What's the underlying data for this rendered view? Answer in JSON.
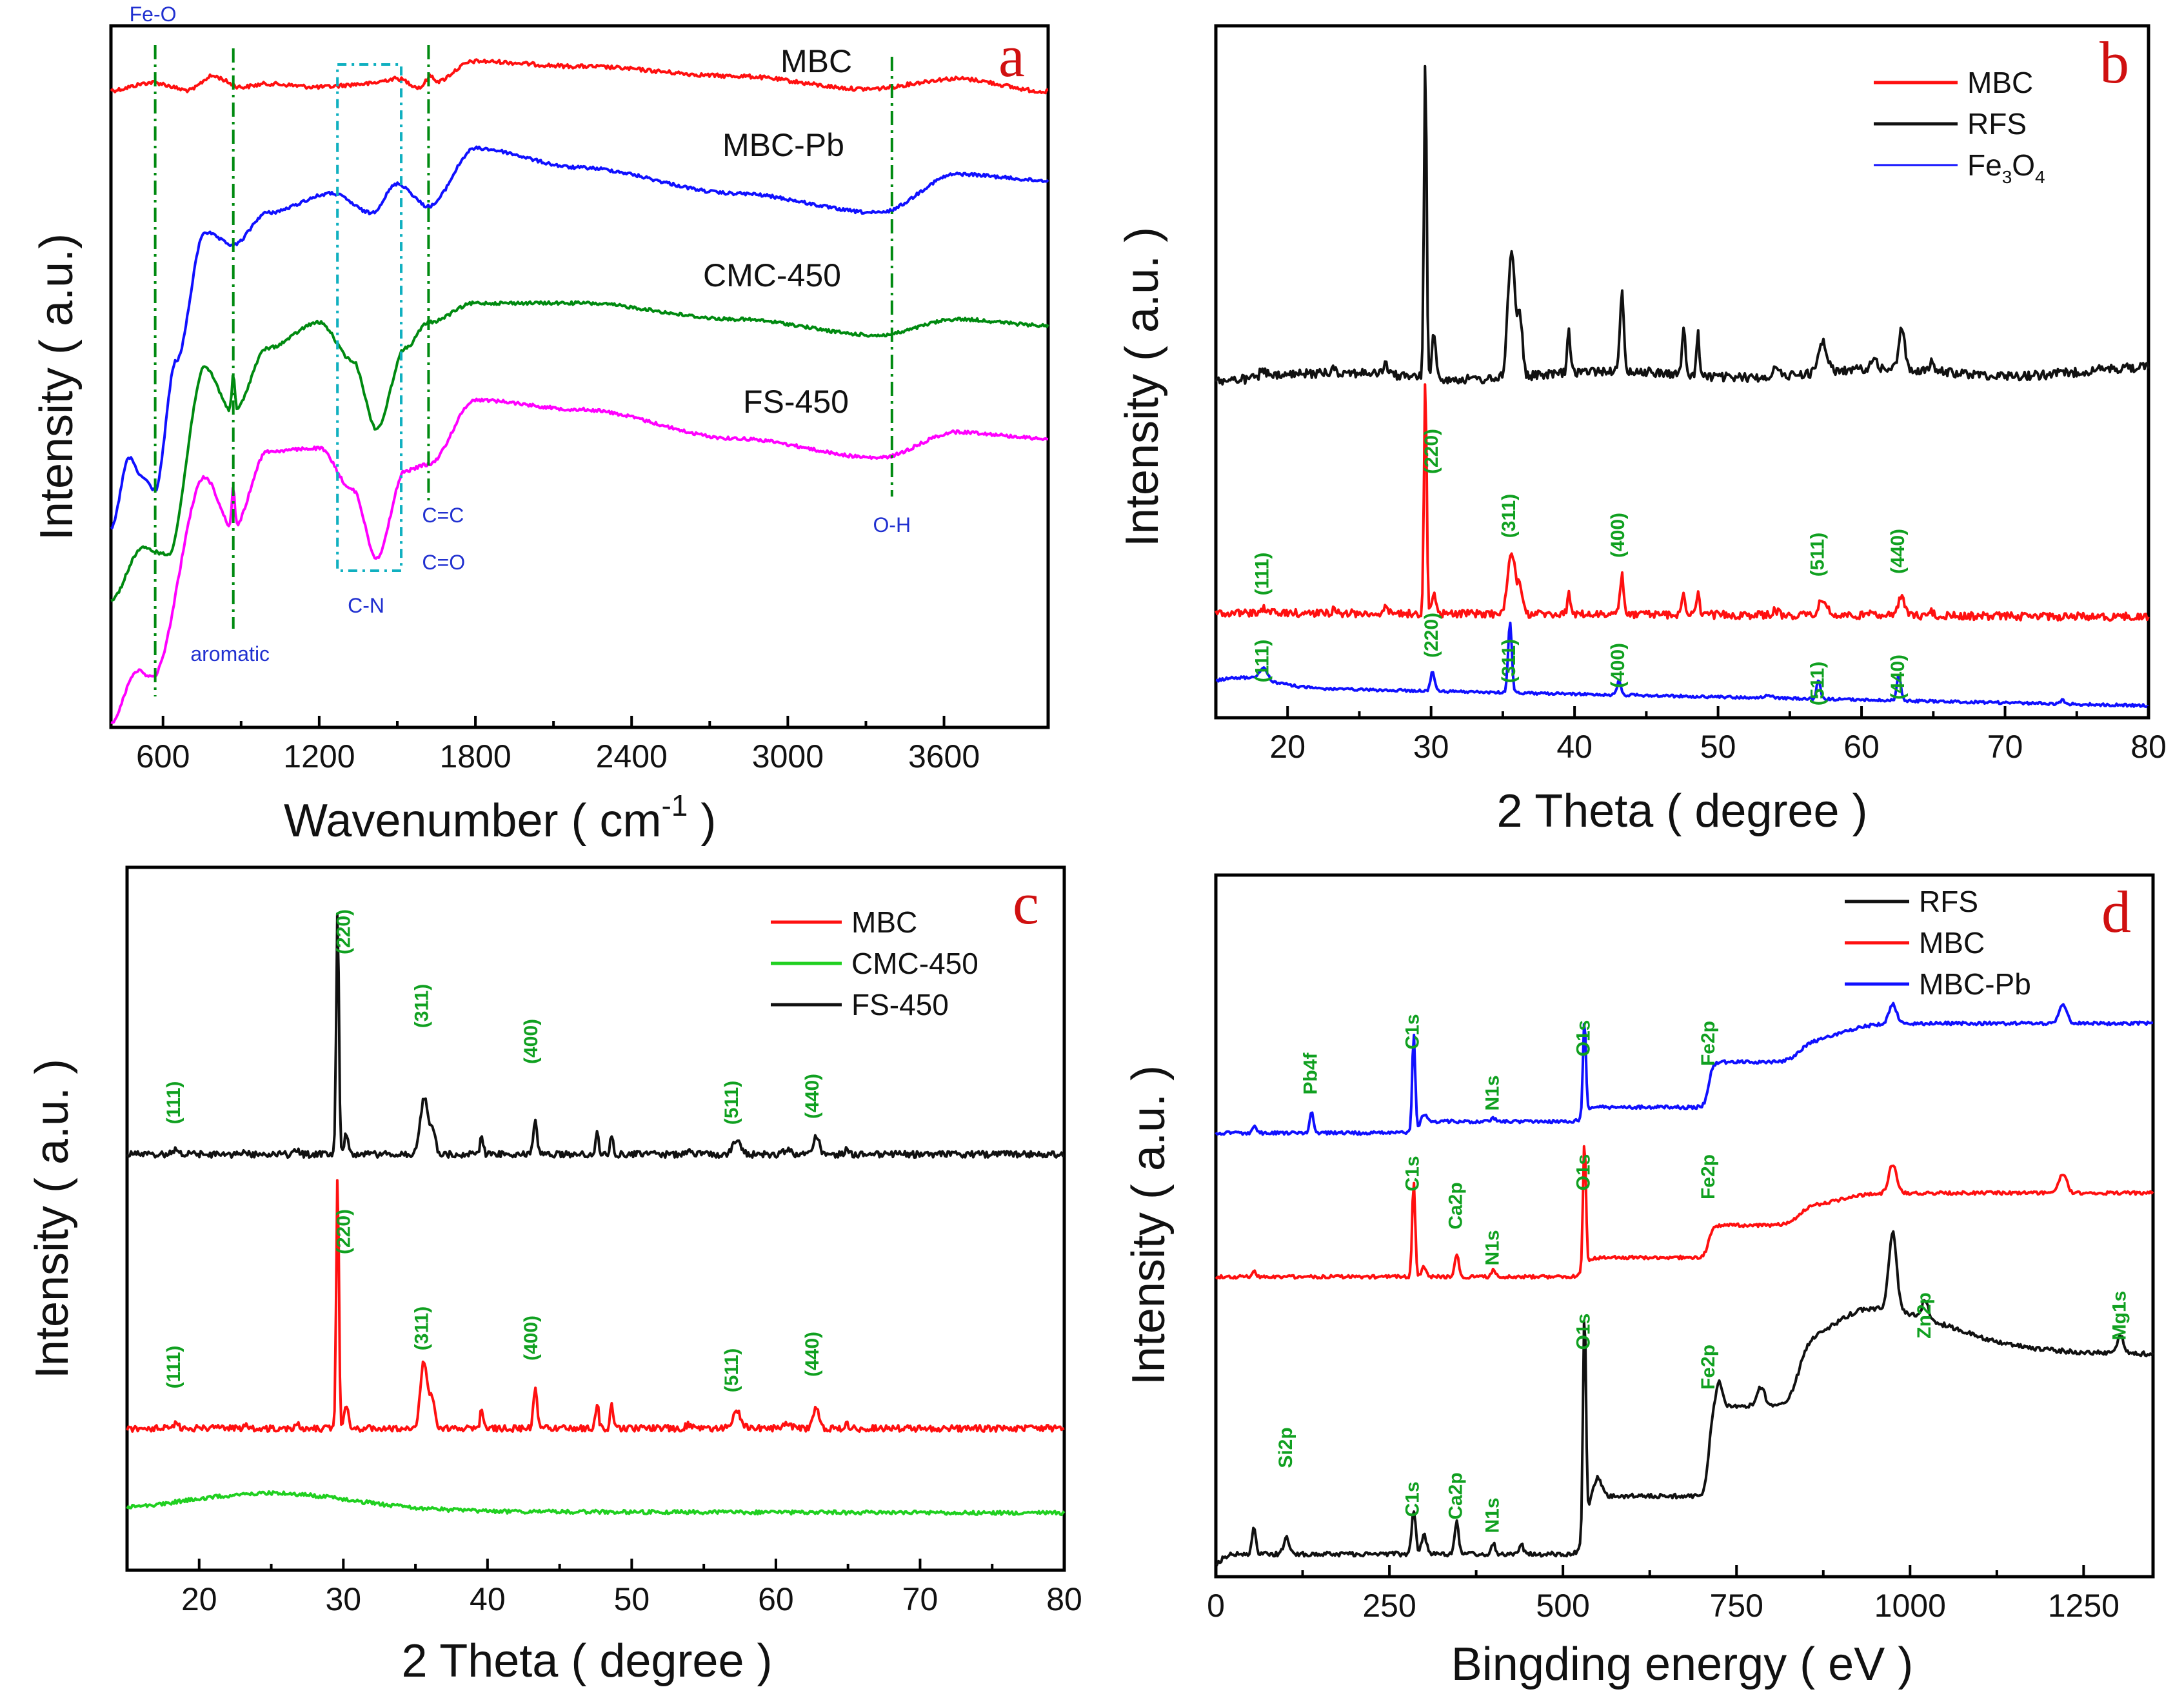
{
  "colors": {
    "red": "#ff1010",
    "black": "#111111",
    "blue": "#1010ff",
    "green": "#008a10",
    "magenta": "#ff00ff",
    "lightgreen": "#20d020",
    "cyan": "#10b0c0",
    "peak_green": "#10a020",
    "band_blue": "#2030d0"
  },
  "chart_data": [
    {
      "panel": "a",
      "type": "line",
      "xlabel": "Wavenumber ( cm",
      "xlabel_sup": "-1",
      "xlabel_tail": " )",
      "ylabel": "Intensity ( a.u.)",
      "xlim": [
        400,
        4000
      ],
      "xticks": [
        600,
        1200,
        1800,
        2400,
        3000,
        3600
      ],
      "tick_labels": [
        "600",
        "1200",
        "1800",
        "2400",
        "3000",
        "3600"
      ],
      "series": [
        {
          "name": "MBC",
          "color": "red"
        },
        {
          "name": "MBC-Pb",
          "color": "blue"
        },
        {
          "name": "CMC-450",
          "color": "green"
        },
        {
          "name": "FS-450",
          "color": "magenta"
        }
      ],
      "bands": [
        {
          "label": "Fe-O",
          "x": 570
        },
        {
          "label": "aromatic",
          "x": 870
        },
        {
          "label": "C-N",
          "x": 1380
        },
        {
          "label": "C=C",
          "x": 1620
        },
        {
          "label": "C=O",
          "x": 1620
        },
        {
          "label": "O-H",
          "x": 3400
        }
      ]
    },
    {
      "panel": "b",
      "type": "line",
      "xlabel": "2 Theta ( degree )",
      "ylabel": "Intensity ( a.u. )",
      "xlim": [
        15,
        80
      ],
      "xticks": [
        20,
        30,
        40,
        50,
        60,
        70,
        80
      ],
      "tick_labels": [
        "20",
        "30",
        "40",
        "50",
        "60",
        "70",
        "80"
      ],
      "legend": [
        {
          "name": "MBC",
          "color": "red"
        },
        {
          "name": "RFS",
          "color": "black"
        },
        {
          "name": "Fe",
          "sub1": "3",
          "mid": "O",
          "sub2": "4",
          "color": "blue"
        }
      ],
      "peaks_mbc": [
        {
          "label": "(111)",
          "x": 18.3
        },
        {
          "label": "(220)",
          "x": 30.1
        },
        {
          "label": "(311)",
          "x": 35.5
        },
        {
          "label": "(400)",
          "x": 43.1
        },
        {
          "label": "(511)",
          "x": 57.0
        },
        {
          "label": "(440)",
          "x": 62.6
        }
      ],
      "peaks_fe3o4": [
        {
          "label": "(111)",
          "x": 18.3
        },
        {
          "label": "(220)",
          "x": 30.1
        },
        {
          "label": "(311)",
          "x": 35.5
        },
        {
          "label": "(400)",
          "x": 43.1
        },
        {
          "label": "(511)",
          "x": 57.0
        },
        {
          "label": "(440)",
          "x": 62.6
        }
      ]
    },
    {
      "panel": "c",
      "type": "line",
      "xlabel": "2 Theta ( degree )",
      "ylabel": "Intensity ( a.u. )",
      "xlim": [
        15,
        80
      ],
      "xticks": [
        20,
        30,
        40,
        50,
        60,
        70,
        80
      ],
      "tick_labels": [
        "20",
        "30",
        "40",
        "50",
        "60",
        "70",
        "80"
      ],
      "legend": [
        {
          "name": "MBC",
          "color": "red"
        },
        {
          "name": "CMC-450",
          "color": "lightgreen"
        },
        {
          "name": "FS-450",
          "color": "black"
        }
      ],
      "peaks_fs450": [
        {
          "label": "(111)",
          "x": 18.3
        },
        {
          "label": "(220)",
          "x": 30.1
        },
        {
          "label": "(311)",
          "x": 35.5
        },
        {
          "label": "(400)",
          "x": 43.1
        },
        {
          "label": "(511)",
          "x": 57.0
        },
        {
          "label": "(440)",
          "x": 62.6
        }
      ],
      "peaks_mbc": [
        {
          "label": "(111)",
          "x": 18.3
        },
        {
          "label": "(220)",
          "x": 30.1
        },
        {
          "label": "(311)",
          "x": 35.5
        },
        {
          "label": "(400)",
          "x": 43.1
        },
        {
          "label": "(511)",
          "x": 57.0
        },
        {
          "label": "(440)",
          "x": 62.6
        }
      ]
    },
    {
      "panel": "d",
      "type": "line",
      "xlabel": "Bingding energy ( eV )",
      "ylabel": "Intensity ( a.u. )",
      "xlim": [
        0,
        1350
      ],
      "xticks": [
        0,
        250,
        500,
        750,
        1000,
        1250
      ],
      "tick_labels": [
        "0",
        "250",
        "500",
        "750",
        "1000",
        "1250"
      ],
      "legend": [
        {
          "name": "RFS",
          "color": "black"
        },
        {
          "name": "MBC",
          "color": "red"
        },
        {
          "name": "MBC-Pb",
          "color": "blue"
        }
      ],
      "peaks_mbcpb": [
        {
          "label": "Pb4f",
          "x": 138
        },
        {
          "label": "C1s",
          "x": 285
        },
        {
          "label": "N1s",
          "x": 400
        },
        {
          "label": "O1s",
          "x": 531
        },
        {
          "label": "Fe2p",
          "x": 711
        }
      ],
      "peaks_mbc": [
        {
          "label": "C1s",
          "x": 285
        },
        {
          "label": "Ca2p",
          "x": 347
        },
        {
          "label": "N1s",
          "x": 400
        },
        {
          "label": "O1s",
          "x": 531
        },
        {
          "label": "Fe2p",
          "x": 711
        }
      ],
      "peaks_rfs": [
        {
          "label": "Si2p",
          "x": 102
        },
        {
          "label": "C1s",
          "x": 285
        },
        {
          "label": "Ca2p",
          "x": 347
        },
        {
          "label": "N1s",
          "x": 400
        },
        {
          "label": "O1s",
          "x": 531
        },
        {
          "label": "Fe2p",
          "x": 711
        },
        {
          "label": "Zn2p",
          "x": 1022
        },
        {
          "label": "Mg1s",
          "x": 1303
        }
      ]
    }
  ],
  "panel_letters": [
    "a",
    "b",
    "c",
    "d"
  ]
}
